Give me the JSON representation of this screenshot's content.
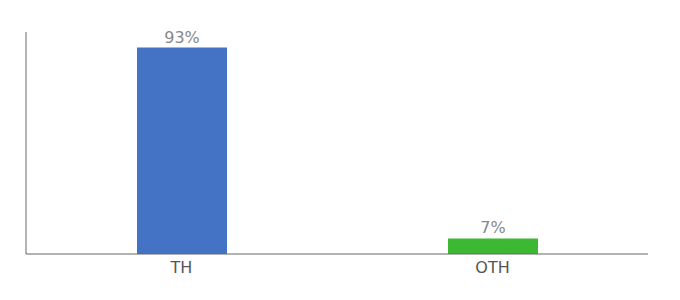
{
  "chart_data": {
    "type": "bar",
    "categories": [
      "TH",
      "OTH"
    ],
    "values": [
      93,
      7
    ],
    "value_labels": [
      "93%",
      "7%"
    ],
    "colors": [
      "#4472c4",
      "#3cb832"
    ],
    "ylim": [
      0,
      100
    ],
    "data_labels": true,
    "tick_labels": "x",
    "grid": false
  }
}
